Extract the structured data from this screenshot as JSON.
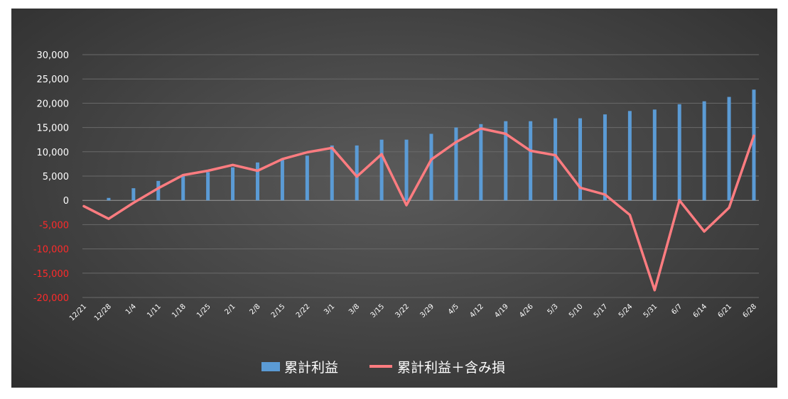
{
  "chart_data": {
    "type": "bar+line",
    "title": "",
    "xlabel": "",
    "ylabel": "",
    "ylim": [
      -20000,
      30000
    ],
    "yticks": [
      30000,
      25000,
      20000,
      15000,
      10000,
      5000,
      0,
      -5000,
      -10000,
      -15000,
      -20000
    ],
    "ytick_labels": [
      "30,000",
      "25,000",
      "20,000",
      "15,000",
      "10,000",
      "5,000",
      "0",
      "-5,000",
      "-10,000",
      "-15,000",
      "-20,000"
    ],
    "negative_label_color": "#ff2a2a",
    "positive_label_color": "#ffffff",
    "grid": true,
    "legend_position": "bottom",
    "categories": [
      "12/21",
      "12/28",
      "1/4",
      "1/11",
      "1/18",
      "1/25",
      "2/1",
      "2/8",
      "2/15",
      "2/22",
      "3/1",
      "3/8",
      "3/15",
      "3/22",
      "3/29",
      "4/5",
      "4/12",
      "4/19",
      "4/26",
      "5/3",
      "5/10",
      "5/17",
      "5/24",
      "5/31",
      "6/7",
      "6/14",
      "6/21",
      "6/28"
    ],
    "series": [
      {
        "name": "累計利益",
        "kind": "bar",
        "color": "#5b9bd5",
        "values": [
          0,
          500,
          2500,
          4000,
          5000,
          5800,
          6800,
          7800,
          8300,
          9200,
          11300,
          11300,
          12500,
          12500,
          13700,
          15000,
          15700,
          16300,
          16300,
          16900,
          16900,
          17700,
          18400,
          18700,
          19800,
          20400,
          21300,
          22800
        ]
      },
      {
        "name": "累計利益＋含み損",
        "kind": "line",
        "color": "#ff7c80",
        "values": [
          -1200,
          -3800,
          -500,
          2500,
          5200,
          6100,
          7300,
          6100,
          8500,
          9900,
          10800,
          4900,
          9500,
          -1000,
          8400,
          12000,
          14800,
          13700,
          10200,
          9300,
          2600,
          1200,
          -3000,
          -18500,
          0,
          -6400,
          -1500,
          13300
        ]
      }
    ]
  }
}
